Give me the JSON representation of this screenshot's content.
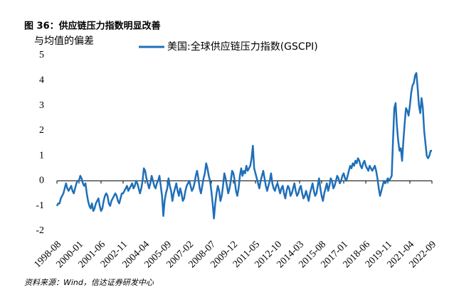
{
  "chart_data": {
    "type": "line",
    "title": "图 36：供应链压力指数明显改善",
    "y_label": "与均值的偏差",
    "source": "资料来源：Wind，信达证券研发中心",
    "categories": [
      "1998-08",
      null,
      null,
      null,
      null,
      null,
      null,
      null,
      null,
      null,
      null,
      null,
      null,
      null,
      null,
      null,
      null,
      "2000-01",
      null,
      null,
      null,
      null,
      null,
      null,
      null,
      null,
      null,
      null,
      null,
      null,
      null,
      null,
      null,
      null,
      "2001-06",
      null,
      null,
      null,
      null,
      null,
      null,
      null,
      null,
      null,
      null,
      null,
      null,
      null,
      null,
      null,
      null,
      "2002-11",
      null,
      null,
      null,
      null,
      null,
      null,
      null,
      null,
      null,
      null,
      null,
      null,
      null,
      null,
      null,
      null,
      "2004-04",
      null,
      null,
      null,
      null,
      null,
      null,
      null,
      null,
      null,
      null,
      null,
      null,
      null,
      null,
      null,
      null,
      "2005-09",
      null,
      null,
      null,
      null,
      null,
      null,
      null,
      null,
      null,
      null,
      null,
      null,
      null,
      null,
      null,
      null,
      "2007-02",
      null,
      null,
      null,
      null,
      null,
      null,
      null,
      null,
      null,
      null,
      null,
      null,
      null,
      null,
      null,
      null,
      "2008-07",
      null,
      null,
      null,
      null,
      null,
      null,
      null,
      null,
      null,
      null,
      null,
      null,
      null,
      null,
      null,
      null,
      "2009-12",
      null,
      null,
      null,
      null,
      null,
      null,
      null,
      null,
      null,
      null,
      null,
      null,
      null,
      null,
      null,
      null,
      "2011-05",
      null,
      null,
      null,
      null,
      null,
      null,
      null,
      null,
      null,
      null,
      null,
      null,
      null,
      null,
      null,
      null,
      "2012-10",
      null,
      null,
      null,
      null,
      null,
      null,
      null,
      null,
      null,
      null,
      null,
      null,
      null,
      null,
      null,
      null,
      "2014-03",
      null,
      null,
      null,
      null,
      null,
      null,
      null,
      null,
      null,
      null,
      null,
      null,
      null,
      null,
      null,
      null,
      "2015-08",
      null,
      null,
      null,
      null,
      null,
      null,
      null,
      null,
      null,
      null,
      null,
      null,
      null,
      null,
      null,
      null,
      "2017-01",
      null,
      null,
      null,
      null,
      null,
      null,
      null,
      null,
      null,
      null,
      null,
      null,
      null,
      null,
      null,
      null,
      "2018-06",
      null,
      null,
      null,
      null,
      null,
      null,
      null,
      null,
      null,
      null,
      null,
      null,
      null,
      null,
      null,
      null,
      "2019-11",
      null,
      null,
      null,
      null,
      null,
      null,
      null,
      null,
      null,
      null,
      null,
      null,
      null,
      null,
      null,
      null,
      "2021-04",
      null,
      null,
      null,
      null,
      null,
      null,
      null,
      null,
      null,
      null,
      null,
      null,
      null,
      null,
      null,
      null,
      "2022-09"
    ],
    "series": [
      {
        "name": "美国:全球供应链压力指数(GSCPI)",
        "color": "#1f6fb8",
        "values": [
          -1.0,
          -0.9,
          -0.9,
          -0.7,
          -0.6,
          -0.5,
          -0.3,
          -0.1,
          -0.3,
          -0.4,
          -0.3,
          -0.2,
          -0.4,
          -0.5,
          -0.3,
          -0.1,
          0.0,
          0.0,
          0.2,
          0.1,
          -0.1,
          -0.2,
          -0.1,
          -0.5,
          -0.8,
          -1.0,
          -1.1,
          -0.9,
          -1.2,
          -1.1,
          -0.9,
          -0.8,
          -0.7,
          -1.0,
          -1.2,
          -1.1,
          -0.8,
          -0.6,
          -0.5,
          -0.6,
          -0.9,
          -1.0,
          -0.8,
          -0.7,
          -0.6,
          -0.5,
          -0.6,
          -0.8,
          -0.9,
          -0.7,
          -0.5,
          -0.5,
          -0.4,
          -0.3,
          -0.2,
          -0.4,
          -0.3,
          -0.2,
          -0.1,
          -0.3,
          -0.2,
          0.0,
          -0.1,
          -0.3,
          -0.5,
          -0.3,
          0.0,
          0.5,
          0.4,
          0.1,
          -0.1,
          -0.3,
          -0.1,
          0.2,
          0.0,
          -0.2,
          -0.3,
          -0.1,
          0.0,
          0.2,
          -0.2,
          -0.6,
          -1.4,
          -0.8,
          -0.5,
          -0.3,
          0.1,
          -0.2,
          -0.4,
          -0.8,
          -0.5,
          -0.3,
          -0.1,
          -0.4,
          -0.6,
          -0.3,
          -0.5,
          -0.8,
          -0.7,
          -0.4,
          -0.2,
          -0.1,
          0.0,
          -0.2,
          -0.4,
          -0.3,
          -0.1,
          0.2,
          0.4,
          0.1,
          -0.3,
          -0.5,
          -0.2,
          0.1,
          0.3,
          0.7,
          0.5,
          0.2,
          0.0,
          -0.4,
          -0.9,
          -1.5,
          -0.9,
          -0.5,
          -0.2,
          -0.4,
          -0.8,
          -0.6,
          -0.2,
          0.3,
          0.1,
          -0.2,
          -0.5,
          -0.3,
          0.0,
          0.4,
          0.3,
          0.0,
          -0.4,
          -0.6,
          -0.3,
          0.2,
          0.5,
          0.2,
          0.4,
          0.3,
          0.6,
          0.4,
          0.5,
          0.6,
          0.9,
          1.4,
          0.5,
          0.3,
          0.1,
          -0.1,
          -0.3,
          0.0,
          0.2,
          0.4,
          0.1,
          -0.2,
          -0.4,
          -0.2,
          0.0,
          0.3,
          -0.1,
          -0.3,
          -0.4,
          -0.2,
          -0.1,
          -0.3,
          -0.5,
          -0.3,
          -0.2,
          -0.5,
          -0.7,
          -0.4,
          -0.2,
          -0.3,
          -0.6,
          -0.5,
          -0.3,
          -0.1,
          -0.4,
          -0.6,
          -0.5,
          -0.3,
          -0.2,
          -0.5,
          -0.7,
          -0.6,
          -0.4,
          -0.6,
          -0.8,
          -0.5,
          -0.3,
          -0.1,
          -0.4,
          -0.6,
          -0.5,
          -0.2,
          0.1,
          -0.3,
          -0.6,
          -0.8,
          -0.5,
          -0.3,
          -0.1,
          -0.4,
          -0.2,
          0.1,
          0.0,
          -0.3,
          -0.2,
          0.0,
          0.2,
          0.1,
          -0.1,
          0.0,
          0.2,
          0.3,
          0.1,
          0.0,
          0.2,
          0.4,
          0.6,
          0.5,
          0.7,
          0.6,
          0.8,
          0.7,
          0.9,
          0.8,
          0.6,
          0.5,
          0.7,
          0.8,
          0.6,
          0.5,
          0.4,
          0.6,
          0.5,
          0.4,
          0.5,
          0.6,
          0.4,
          0.1,
          -0.3,
          -0.6,
          -0.4,
          -0.2,
          0.0,
          -0.1,
          0.0,
          0.1,
          0.0,
          0.1,
          0.2,
          1.6,
          2.9,
          3.1,
          2.2,
          1.6,
          1.2,
          1.3,
          0.8,
          1.6,
          2.3,
          2.9,
          2.8,
          2.6,
          3.0,
          3.5,
          3.8,
          3.9,
          4.2,
          4.3,
          3.7,
          3.0,
          2.7,
          3.3,
          2.9,
          2.0,
          1.5,
          1.0,
          0.9,
          1.0,
          1.2,
          1.2
        ]
      }
    ],
    "ylim": [
      -2,
      5
    ],
    "yticks": [
      -2,
      -1,
      0,
      1,
      2,
      3,
      4,
      5
    ],
    "grid": false,
    "legend": "top"
  }
}
